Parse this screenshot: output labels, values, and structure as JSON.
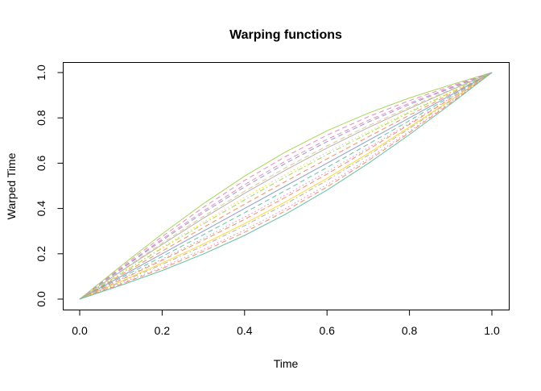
{
  "chart_data": {
    "type": "line",
    "title": "Warping functions",
    "xlabel": "Time",
    "ylabel": "Warped Time",
    "xlim": [
      0,
      1
    ],
    "ylim": [
      0,
      1
    ],
    "xticks": [
      "0.0",
      "0.2",
      "0.4",
      "0.6",
      "0.8",
      "1.0"
    ],
    "yticks": [
      "0.0",
      "0.2",
      "0.4",
      "0.6",
      "0.8",
      "1.0"
    ],
    "grid": false,
    "x": [
      0,
      0.1,
      0.2,
      0.3,
      0.4,
      0.5,
      0.6,
      0.7,
      0.8,
      0.9,
      1
    ],
    "series": [
      {
        "color": "#A6D854",
        "lty": "solid",
        "values": [
          0,
          0.146,
          0.288,
          0.421,
          0.543,
          0.65,
          0.743,
          0.821,
          0.888,
          0.946,
          1
        ]
      },
      {
        "color": "#E78AC3",
        "lty": "dashed",
        "values": [
          0,
          0.14,
          0.276,
          0.405,
          0.524,
          0.63,
          0.724,
          0.805,
          0.876,
          0.94,
          1
        ]
      },
      {
        "color": "#E78AC3",
        "lty": "dashed",
        "values": [
          0,
          0.134,
          0.265,
          0.389,
          0.505,
          0.61,
          0.705,
          0.789,
          0.865,
          0.934,
          1
        ]
      },
      {
        "color": "#8DA0CB",
        "lty": "dashed",
        "values": [
          0,
          0.131,
          0.259,
          0.381,
          0.495,
          0.6,
          0.695,
          0.781,
          0.859,
          0.931,
          1
        ]
      },
      {
        "color": "#E5C494",
        "lty": "dashed",
        "values": [
          0,
          0.125,
          0.247,
          0.365,
          0.476,
          0.58,
          0.676,
          0.765,
          0.847,
          0.925,
          1
        ]
      },
      {
        "color": "#B3B3B3",
        "lty": "solid",
        "values": [
          0,
          0.122,
          0.241,
          0.357,
          0.467,
          0.57,
          0.667,
          0.757,
          0.841,
          0.922,
          1
        ]
      },
      {
        "color": "#FFD92F",
        "lty": "dotted",
        "values": [
          0,
          0.115,
          0.229,
          0.34,
          0.448,
          0.55,
          0.648,
          0.74,
          0.829,
          0.915,
          1
        ]
      },
      {
        "color": "#A6D854",
        "lty": "dotdash",
        "values": [
          0,
          0.112,
          0.224,
          0.332,
          0.438,
          0.54,
          0.638,
          0.732,
          0.824,
          0.912,
          1
        ]
      },
      {
        "color": "#FC8D62",
        "lty": "dashed",
        "values": [
          0,
          0.106,
          0.212,
          0.316,
          0.419,
          0.52,
          0.619,
          0.716,
          0.812,
          0.906,
          1
        ]
      },
      {
        "color": "#8DA0CB",
        "lty": "solid",
        "values": [
          0,
          0.1,
          0.2,
          0.3,
          0.4,
          0.5,
          0.6,
          0.7,
          0.8,
          0.9,
          1
        ]
      },
      {
        "color": "#66C2A5",
        "lty": "dashed",
        "values": [
          0,
          0.094,
          0.188,
          0.284,
          0.381,
          0.48,
          0.581,
          0.684,
          0.788,
          0.894,
          1
        ]
      },
      {
        "color": "#E78AC3",
        "lty": "dotted",
        "values": [
          0,
          0.088,
          0.176,
          0.268,
          0.362,
          0.46,
          0.562,
          0.668,
          0.776,
          0.888,
          1
        ]
      },
      {
        "color": "#FC8D62",
        "lty": "dashed",
        "values": [
          0,
          0.085,
          0.171,
          0.26,
          0.352,
          0.45,
          0.552,
          0.66,
          0.771,
          0.885,
          1
        ]
      },
      {
        "color": "#FFD92F",
        "lty": "solid",
        "values": [
          0,
          0.078,
          0.159,
          0.243,
          0.333,
          0.43,
          0.533,
          0.643,
          0.759,
          0.878,
          1
        ]
      },
      {
        "color": "#B3B3B3",
        "lty": "dotdash",
        "values": [
          0,
          0.075,
          0.153,
          0.235,
          0.324,
          0.42,
          0.524,
          0.635,
          0.753,
          0.875,
          1
        ]
      },
      {
        "color": "#E78AC3",
        "lty": "dotted",
        "values": [
          0,
          0.069,
          0.141,
          0.219,
          0.305,
          0.4,
          0.505,
          0.619,
          0.741,
          0.869,
          1
        ]
      },
      {
        "color": "#FC8D62",
        "lty": "dashed",
        "values": [
          0,
          0.066,
          0.135,
          0.211,
          0.295,
          0.39,
          0.495,
          0.611,
          0.735,
          0.866,
          1
        ]
      },
      {
        "color": "#66C2A5",
        "lty": "solid",
        "values": [
          0,
          0.061,
          0.126,
          0.199,
          0.281,
          0.375,
          0.481,
          0.599,
          0.726,
          0.861,
          1
        ]
      }
    ]
  }
}
